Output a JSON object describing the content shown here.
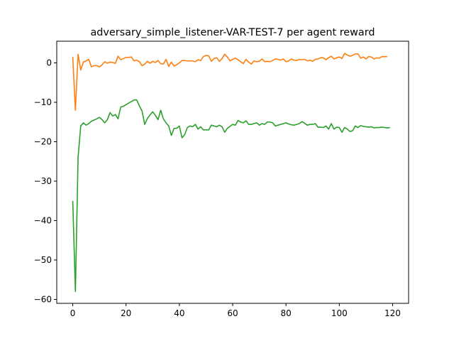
{
  "chart_data": {
    "type": "line",
    "title": "adversary_simple_listener-VAR-TEST-7 per agent reward",
    "xlabel": "",
    "ylabel": "",
    "xlim": [
      -6,
      126
    ],
    "ylim": [
      -61,
      5.5
    ],
    "xticks": [
      0,
      20,
      40,
      60,
      80,
      100,
      120
    ],
    "yticks": [
      0,
      -10,
      -20,
      -30,
      -40,
      -50,
      -60
    ],
    "grid": false,
    "legend": "none",
    "series": [
      {
        "color": "#ff7f0e",
        "values": [
          1.5,
          -12,
          2.2,
          -1.8,
          0.2,
          0.5,
          0.9,
          -1,
          -0.7,
          -0.7,
          -1,
          -0.5,
          0.3,
          -0.1,
          0.2,
          0.1,
          -0.1,
          1.7,
          0.8,
          1.1,
          1.4,
          1.4,
          1.5,
          0.5,
          0.7,
          0.3,
          -0.7,
          -0.3,
          0.4,
          -0.1,
          0.4,
          0.1,
          0.6,
          -0.2,
          -0.3,
          0.9,
          -0.9,
          0.2,
          -0.8,
          -0.5,
          0,
          0.6,
          0.6,
          0.5,
          0.5,
          0.5,
          0.3,
          0.8,
          0.6,
          1.6,
          1.9,
          1.8,
          0.4,
          1.1,
          1.3,
          0.4,
          1.1,
          2.2,
          1.5,
          0.5,
          0.9,
          1.2,
          0.8,
          0.3,
          -0.2,
          0.9,
          0.2,
          -0.3,
          0.5,
          0.3,
          0.4,
          1,
          0.3,
          0.4,
          0.3,
          0.6,
          1,
          0.9,
          0.7,
          1,
          0.3,
          0.5,
          1,
          0.7,
          0.6,
          0.9,
          0.8,
          0.9,
          0.5,
          0.7,
          0.4,
          0.9,
          1,
          1.3,
          1.3,
          0.8,
          1.3,
          1.7,
          1,
          1.3,
          1.5,
          1.1,
          2.4,
          2,
          1.7,
          1.9,
          2.3,
          2.3,
          1.2,
          1.5,
          1,
          1.6,
          1.5,
          1,
          1.3,
          1.2,
          1.6,
          1.6,
          1.6
        ]
      },
      {
        "color": "#2ca02c",
        "values": [
          -35,
          -58,
          -24,
          -16,
          -15.2,
          -15.8,
          -15.4,
          -14.8,
          -14.5,
          -14.2,
          -13.8,
          -14.4,
          -15.2,
          -14.4,
          -12.6,
          -13.5,
          -13.1,
          -14.2,
          -11.2,
          -11,
          -10.6,
          -10.2,
          -9.8,
          -9.4,
          -9.4,
          -10.9,
          -12.2,
          -15.6,
          -14.1,
          -13.2,
          -12.4,
          -13.3,
          -14.4,
          -12,
          -14.2,
          -15.2,
          -16,
          -18.4,
          -16.6,
          -16.6,
          -16,
          -19,
          -18.2,
          -16.4,
          -16,
          -16.2,
          -15.6,
          -16.8,
          -16.2,
          -17,
          -17,
          -17,
          -15.8,
          -16,
          -16.2,
          -15.8,
          -16.2,
          -17.6,
          -16.6,
          -16.1,
          -15.6,
          -15.8,
          -14.6,
          -15,
          -15.2,
          -14.7,
          -15.6,
          -15.6,
          -15.4,
          -15.2,
          -15.8,
          -15.4,
          -15.6,
          -15,
          -15,
          -15.2,
          -16,
          -15.8,
          -15.6,
          -15.4,
          -15.2,
          -15.5,
          -15.7,
          -15.8,
          -15.6,
          -15.4,
          -14.9,
          -15.3,
          -15.8,
          -15.6,
          -15.6,
          -15.4,
          -16.3,
          -16.3,
          -16.4,
          -16,
          -16.8,
          -15.4,
          -16.8,
          -16.3,
          -16.4,
          -17.6,
          -16.4,
          -16.8,
          -17.4,
          -17.2,
          -16,
          -16.4,
          -15.9,
          -16.1,
          -16.2,
          -16.3,
          -16.2,
          -16.5,
          -16.4,
          -16.4,
          -16.3,
          -16.4,
          -16.5,
          -16.4
        ]
      }
    ]
  }
}
